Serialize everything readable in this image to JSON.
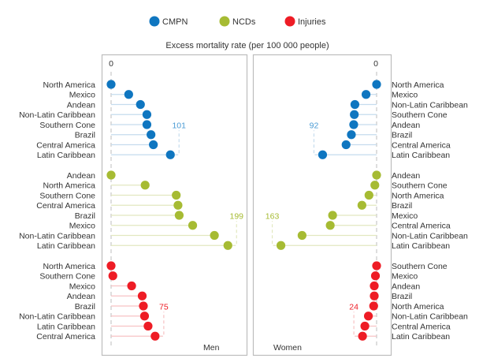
{
  "chart_data": {
    "type": "dot-lollipop",
    "title": "Excess mortality rate (per 100 000 people)",
    "legend": {
      "position": "top-center",
      "entries": [
        {
          "name": "CMPN",
          "color": "#0f76c0"
        },
        {
          "name": "NCDs",
          "color": "#a6bb33"
        },
        {
          "name": "Injuries",
          "color": "#ee1c25"
        }
      ]
    },
    "panels": [
      {
        "name": "Men",
        "direction": "right",
        "zero_label": "0",
        "groups": [
          {
            "series": "CMPN",
            "max_label": "101",
            "categories": [
              "North America",
              "Mexico",
              "Andean",
              "Non-Latin Caribbean",
              "Southern Cone",
              "Brazil",
              "Central America",
              "Latin Caribbean"
            ],
            "values": [
              0,
              30,
              50,
              61,
              61,
              68,
              72,
              101
            ]
          },
          {
            "series": "NCDs",
            "max_label": "199",
            "categories": [
              "Andean",
              "North America",
              "Southern Cone",
              "Central America",
              "Brazil",
              "Mexico",
              "Non-Latin Caribbean",
              "Latin Caribbean"
            ],
            "values": [
              0,
              58,
              111,
              114,
              116,
              139,
              176,
              199
            ]
          },
          {
            "series": "Injuries",
            "max_label": "75",
            "categories": [
              "North America",
              "Southern Cone",
              "Mexico",
              "Andean",
              "Brazil",
              "Non-Latin Caribbean",
              "Latin Caribbean",
              "Central America"
            ],
            "values": [
              0,
              3,
              35,
              53,
              55,
              57,
              63,
              75
            ]
          }
        ]
      },
      {
        "name": "Women",
        "direction": "left",
        "zero_label": "0",
        "groups": [
          {
            "series": "CMPN",
            "max_label": "92",
            "categories": [
              "North America",
              "Mexico",
              "Non-Latin Caribbean",
              "Southern Cone",
              "Andean",
              "Brazil",
              "Central America",
              "Latin Caribbean"
            ],
            "values": [
              0,
              18,
              37,
              38,
              39,
              43,
              52,
              92
            ]
          },
          {
            "series": "NCDs",
            "max_label": "163",
            "categories": [
              "Andean",
              "Southern Cone",
              "North America",
              "Brazil",
              "Mexico",
              "Central America",
              "Non-Latin Caribbean",
              "Latin Caribbean"
            ],
            "values": [
              0,
              3,
              13,
              25,
              75,
              79,
              127,
              163
            ]
          },
          {
            "series": "Injuries",
            "max_label": "24",
            "categories": [
              "Southern Cone",
              "Mexico",
              "Andean",
              "Brazil",
              "North America",
              "Non-Latin Caribbean",
              "Central America",
              "Latin Caribbean"
            ],
            "values": [
              0,
              2,
              4,
              4,
              5,
              14,
              20,
              24
            ]
          }
        ]
      }
    ],
    "grid": false
  }
}
